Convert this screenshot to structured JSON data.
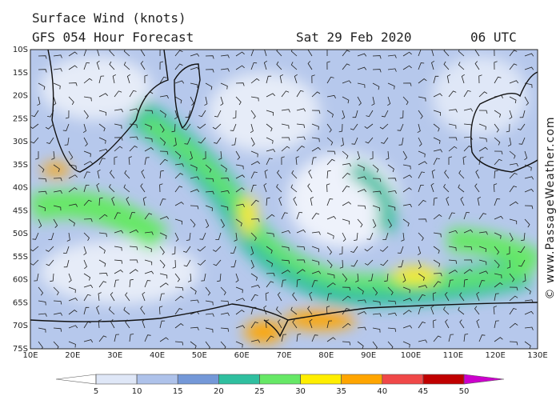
{
  "header": {
    "title": "Surface Wind (knots)",
    "subtitle": "GFS 054 Hour Forecast",
    "date": "Sat 29 Feb 2020",
    "time": "06 UTC"
  },
  "map": {
    "latitude_labels": [
      "10S",
      "15S",
      "20S",
      "25S",
      "30S",
      "35S",
      "40S",
      "45S",
      "50S",
      "55S",
      "60S",
      "65S",
      "70S",
      "75S"
    ],
    "longitude_labels": [
      "10E",
      "20E",
      "30E",
      "40E",
      "50E",
      "60E",
      "70E",
      "80E",
      "90E",
      "100E",
      "110E",
      "120E",
      "130E"
    ]
  },
  "colorbar": {
    "ticks": [
      5,
      10,
      15,
      20,
      25,
      30,
      35,
      40,
      45,
      50
    ],
    "colors": [
      "#ffffff",
      "#dfe7f7",
      "#aec2ea",
      "#7498d8",
      "#2fbf9f",
      "#66e866",
      "#ffee00",
      "#ffa500",
      "#f04848",
      "#c00000",
      "#cc00cc"
    ]
  },
  "watermark": "© www.PassageWeather.com"
}
